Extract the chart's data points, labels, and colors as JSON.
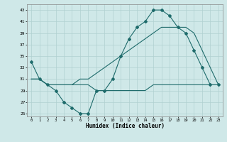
{
  "xlabel": "Humidex (Indice chaleur)",
  "bg_color": "#cfe8e8",
  "line_color": "#1e6b6b",
  "grid_color": "#b0d0d0",
  "xlim": [
    -0.5,
    23.5
  ],
  "ylim": [
    24.5,
    44
  ],
  "yticks": [
    25,
    27,
    29,
    31,
    33,
    35,
    37,
    39,
    41,
    43
  ],
  "xticks": [
    0,
    1,
    2,
    3,
    4,
    5,
    6,
    7,
    8,
    9,
    10,
    11,
    12,
    13,
    14,
    15,
    16,
    17,
    18,
    19,
    20,
    21,
    22,
    23
  ],
  "line1_x": [
    0,
    1,
    2,
    3,
    4,
    5,
    6,
    7,
    8,
    9,
    10,
    11,
    12,
    13,
    14,
    15,
    16,
    17,
    18,
    19,
    20,
    21,
    22,
    23
  ],
  "line1_y": [
    34,
    31,
    30,
    29,
    27,
    26,
    25,
    25,
    29,
    29,
    31,
    35,
    38,
    40,
    41,
    43,
    43,
    42,
    40,
    39,
    36,
    33,
    30,
    30
  ],
  "line2_x": [
    0,
    1,
    2,
    3,
    4,
    5,
    6,
    7,
    8,
    9,
    10,
    11,
    12,
    13,
    14,
    15,
    16,
    17,
    18,
    19,
    20,
    21,
    22,
    23
  ],
  "line2_y": [
    31,
    31,
    30,
    30,
    30,
    30,
    30,
    30,
    29,
    29,
    29,
    29,
    29,
    29,
    29,
    30,
    30,
    30,
    30,
    30,
    30,
    30,
    30,
    30
  ],
  "line3_x": [
    0,
    1,
    2,
    3,
    4,
    5,
    6,
    7,
    8,
    9,
    10,
    11,
    12,
    13,
    14,
    15,
    16,
    17,
    18,
    19,
    20,
    21,
    22,
    23
  ],
  "line3_y": [
    31,
    31,
    30,
    30,
    30,
    30,
    31,
    31,
    32,
    33,
    34,
    35,
    36,
    37,
    38,
    39,
    40,
    40,
    40,
    40,
    39,
    36,
    33,
    30
  ]
}
